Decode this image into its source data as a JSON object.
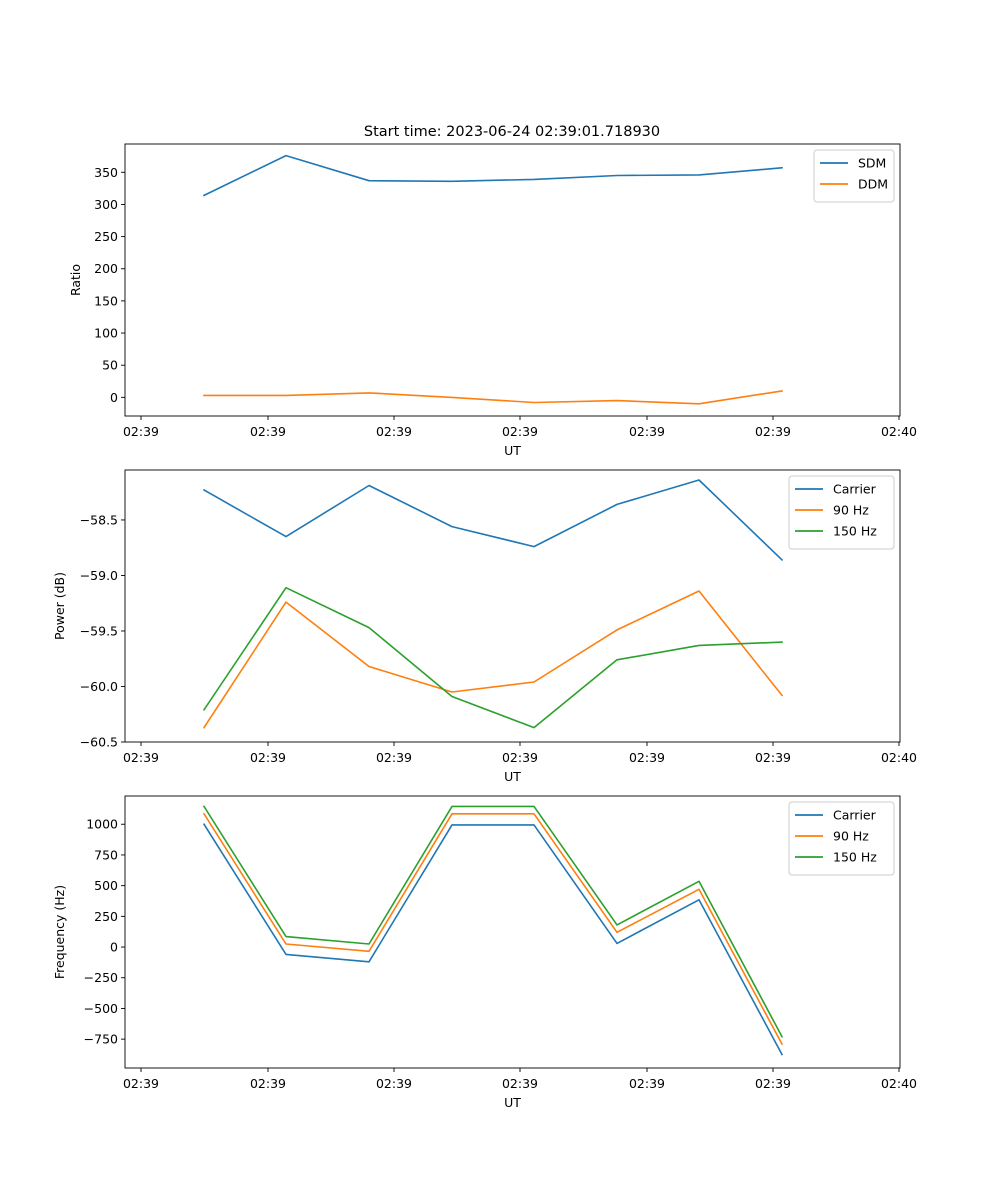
{
  "figure": {
    "title": "Start time: 2023-06-24 02:39:01.718930"
  },
  "chart_data": [
    {
      "type": "line",
      "title": "Start time: 2023-06-24 02:39:01.718930",
      "xlabel": "UT",
      "ylabel": "Ratio",
      "xticks": [
        "02:39",
        "02:39",
        "02:39",
        "02:39",
        "02:39",
        "02:39",
        "02:40"
      ],
      "ylim": [
        -29,
        394
      ],
      "yticks": [
        0,
        50,
        100,
        150,
        200,
        250,
        300,
        350
      ],
      "ytick_labels": [
        "0",
        "50",
        "100",
        "150",
        "200",
        "250",
        "300",
        "350"
      ],
      "legend": "top-right",
      "grid": false,
      "series": [
        {
          "name": "SDM",
          "color": "#1f77b4",
          "values": [
            314,
            376,
            337,
            336,
            339,
            345,
            346,
            357
          ]
        },
        {
          "name": "DDM",
          "color": "#ff7f0e",
          "values": [
            3,
            3,
            7,
            0,
            -8,
            -5,
            -10,
            10
          ]
        }
      ]
    },
    {
      "type": "line",
      "xlabel": "UT",
      "ylabel": "Power (dB)",
      "xticks": [
        "02:39",
        "02:39",
        "02:39",
        "02:39",
        "02:39",
        "02:39",
        "02:40"
      ],
      "ylim": [
        -60.5,
        -58.05
      ],
      "yticks": [
        -60.5,
        -60.0,
        -59.5,
        -59.0,
        -58.5
      ],
      "ytick_labels": [
        "−60.5",
        "−60.0",
        "−59.5",
        "−59.0",
        "−58.5"
      ],
      "legend": "top-right",
      "grid": false,
      "series": [
        {
          "name": "Carrier",
          "color": "#1f77b4",
          "values": [
            -58.23,
            -58.65,
            -58.19,
            -58.56,
            -58.74,
            -58.36,
            -58.14,
            -58.86
          ]
        },
        {
          "name": "90 Hz",
          "color": "#ff7f0e",
          "values": [
            -60.37,
            -59.24,
            -59.82,
            -60.05,
            -59.96,
            -59.49,
            -59.14,
            -60.08
          ]
        },
        {
          "name": "150 Hz",
          "color": "#2ca02c",
          "values": [
            -60.21,
            -59.11,
            -59.47,
            -60.09,
            -60.37,
            -59.76,
            -59.63,
            -59.6
          ]
        }
      ]
    },
    {
      "type": "line",
      "xlabel": "UT",
      "ylabel": "Frequency (Hz)",
      "xticks": [
        "02:39",
        "02:39",
        "02:39",
        "02:39",
        "02:39",
        "02:39",
        "02:40"
      ],
      "ylim": [
        -985,
        1230
      ],
      "yticks": [
        -750,
        -500,
        -250,
        0,
        250,
        500,
        750,
        1000
      ],
      "ytick_labels": [
        "−750",
        "−500",
        "−250",
        "0",
        "250",
        "500",
        "750",
        "1000"
      ],
      "legend": "top-right",
      "grid": false,
      "series": [
        {
          "name": "Carrier",
          "color": "#1f77b4",
          "values": [
            1000,
            -60,
            -120,
            995,
            995,
            30,
            385,
            -875
          ]
        },
        {
          "name": "90 Hz",
          "color": "#ff7f0e",
          "values": [
            1085,
            25,
            -35,
            1085,
            1085,
            120,
            470,
            -790
          ]
        },
        {
          "name": "150 Hz",
          "color": "#2ca02c",
          "values": [
            1145,
            85,
            25,
            1145,
            1145,
            180,
            535,
            -730
          ]
        }
      ]
    }
  ]
}
